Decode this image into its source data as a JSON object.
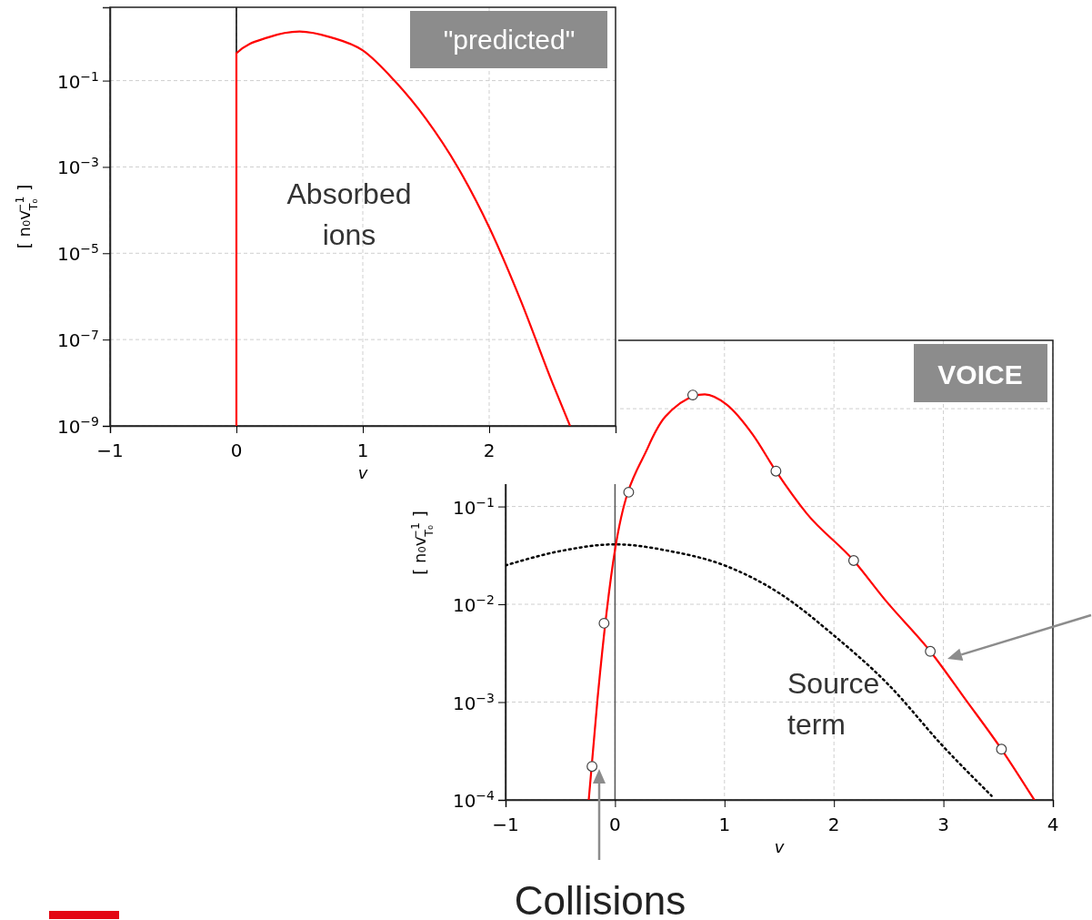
{
  "chart_data": [
    {
      "type": "line",
      "xlabel": "v",
      "ylabel": "[ n₀v$_{T₀}$$^{−1}$ ]",
      "log": "y",
      "grid": true,
      "xlim": [
        -1,
        3
      ],
      "ylim": [
        1e-09,
        5
      ],
      "xticks": [
        {
          "value": -1,
          "label": "−1"
        },
        0,
        1,
        2
      ],
      "yticks": [
        {
          "value": 1e-09,
          "label": "10$^{−9}$"
        },
        {
          "value": 1e-07,
          "label": "10$^{−7}$"
        },
        {
          "value": 1e-05,
          "label": "10$^{−5}$"
        },
        {
          "value": 0.001,
          "label": "10$^{−3}$"
        },
        {
          "value": 0.1,
          "label": "10$^{−1}$"
        }
      ],
      "ref_lines": [
        {
          "axis": "x",
          "value": 0,
          "color": "#000000"
        }
      ],
      "annotations": [
        "\"predicted\"",
        "Absorbed ions"
      ],
      "series": [
        {
          "color": "#ff0000",
          "line_style": "solid",
          "marker": "none",
          "x": [
            0,
            0,
            0.25,
            0.5,
            0.75,
            1,
            1.25,
            1.5,
            1.75,
            2,
            2.25,
            2.5,
            2.64
          ],
          "values": [
            1e-09,
            0.43,
            1.0,
            1.37,
            1.0,
            0.5,
            0.1,
            0.013,
            0.001,
            4e-05,
            8e-07,
            1e-08,
            1e-09
          ]
        }
      ]
    },
    {
      "type": "line",
      "xlabel": "v",
      "ylabel": "[ n₀v$_{T₀}$$^{−1}$ ]",
      "log": "y",
      "grid": true,
      "xlim": [
        -1,
        4
      ],
      "ylim": [
        0.0001,
        5
      ],
      "xticks": [
        {
          "value": -1,
          "label": "−1"
        },
        0,
        1,
        2,
        3,
        4
      ],
      "yticks": [
        {
          "value": 0.0001,
          "label": "10$^{−4}$"
        },
        {
          "value": 0.001,
          "label": "10$^{−3}$"
        },
        {
          "value": 0.01,
          "label": "10$^{−2}$"
        },
        {
          "value": 0.1,
          "label": "10$^{−1}$"
        },
        {
          "value": 1,
          "label": null
        }
      ],
      "ref_lines": [
        {
          "axis": "x",
          "value": 0,
          "color": "#555555"
        }
      ],
      "annotations": [
        "VOICE",
        "Source term",
        "Collisions"
      ],
      "series": [
        {
          "color": "#000000",
          "line_style": "dotted",
          "marker": "none",
          "x": [
            -1,
            -0.5,
            0,
            0.5,
            1,
            1.5,
            2,
            2.5,
            3,
            3.44
          ],
          "values": [
            0.025,
            0.035,
            0.041,
            0.035,
            0.025,
            0.013,
            0.0048,
            0.0015,
            0.00035,
            0.00011
          ]
        },
        {
          "color": "#ff0000",
          "line_style": "solid",
          "marker": "none",
          "x": [
            -0.24,
            -0.16,
            0,
            0.3,
            0.46,
            0.82,
            1.02,
            1.26,
            1.47,
            1.75,
            2.18,
            2.47,
            2.88,
            3.2,
            3.53,
            3.83
          ],
          "values": [
            0.0001,
            0.00107,
            0.036,
            0.4,
            0.83,
            1.4,
            1.1,
            0.54,
            0.23,
            0.085,
            0.028,
            0.011,
            0.0033,
            0.00107,
            0.00033,
            0.0001
          ]
        },
        {
          "type": "scatter",
          "color": "#ffffff",
          "marker": "circle",
          "x": [
            -0.21,
            -0.1,
            0.125,
            0.71,
            1.47,
            2.18,
            2.88,
            3.53
          ],
          "values": [
            0.00022,
            0.0064,
            0.14,
            1.38,
            0.23,
            0.028,
            0.0033,
            0.00033
          ]
        }
      ]
    }
  ]
}
